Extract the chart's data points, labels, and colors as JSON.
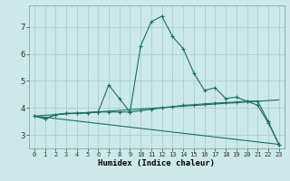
{
  "xlabel": "Humidex (Indice chaleur)",
  "xlim": [
    -0.5,
    23.5
  ],
  "ylim": [
    2.5,
    7.8
  ],
  "yticks": [
    3,
    4,
    5,
    6,
    7
  ],
  "xticks": [
    0,
    1,
    2,
    3,
    4,
    5,
    6,
    7,
    8,
    9,
    10,
    11,
    12,
    13,
    14,
    15,
    16,
    17,
    18,
    19,
    20,
    21,
    22,
    23
  ],
  "bg_color": "#cce8e8",
  "grid_color": "#aacfcf",
  "line_color": "#1a7060",
  "lines": [
    {
      "x": [
        0,
        1,
        2,
        3,
        4,
        5,
        6,
        7,
        8,
        9,
        10,
        11,
        12,
        13,
        14,
        15,
        16,
        17,
        18,
        19,
        20,
        21,
        22,
        23
      ],
      "y": [
        3.7,
        3.6,
        3.75,
        3.8,
        3.8,
        3.82,
        3.85,
        4.85,
        4.35,
        3.85,
        6.3,
        7.2,
        7.4,
        6.65,
        6.2,
        5.3,
        4.65,
        4.75,
        4.35,
        4.4,
        4.25,
        4.1,
        3.45,
        2.65
      ],
      "marker": true
    },
    {
      "x": [
        0,
        1,
        2,
        3,
        4,
        5,
        6,
        7,
        8,
        9,
        10,
        11,
        12,
        13,
        14,
        15,
        16,
        17,
        18,
        19,
        20,
        21,
        22,
        23
      ],
      "y": [
        3.7,
        3.6,
        3.75,
        3.8,
        3.8,
        3.82,
        3.85,
        3.85,
        3.85,
        3.85,
        3.9,
        3.95,
        4.0,
        4.05,
        4.1,
        4.12,
        4.15,
        4.18,
        4.2,
        4.22,
        4.25,
        4.25,
        3.5,
        2.65
      ],
      "marker": true
    },
    {
      "x": [
        0,
        23
      ],
      "y": [
        3.7,
        4.3
      ],
      "marker": false
    },
    {
      "x": [
        0,
        23
      ],
      "y": [
        3.7,
        2.65
      ],
      "marker": false
    }
  ]
}
